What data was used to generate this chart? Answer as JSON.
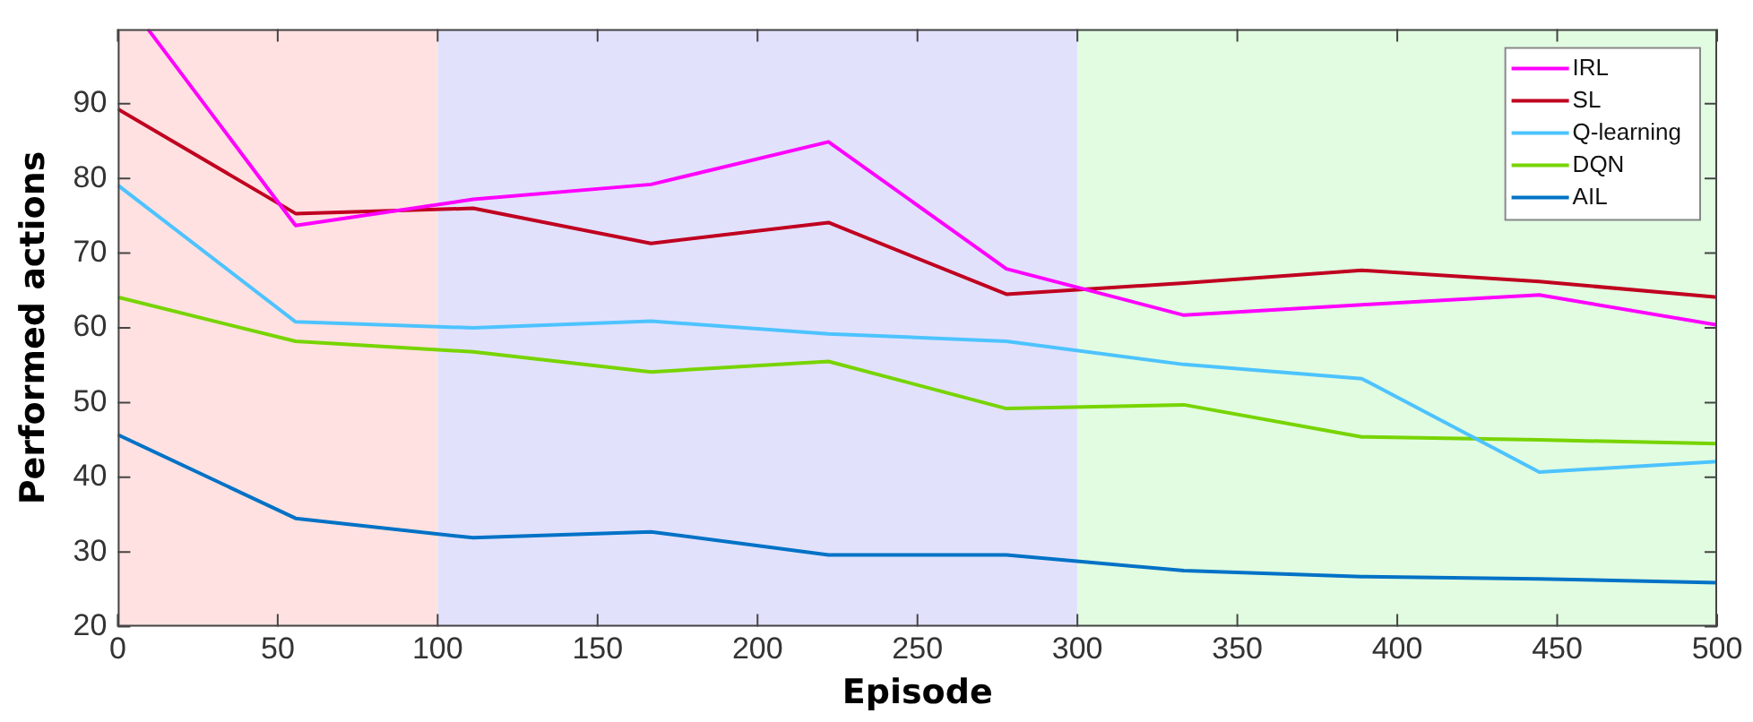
{
  "chart_data": {
    "type": "line",
    "xlabel": "Episode",
    "ylabel": "Performed actions",
    "x": [
      0,
      55.6,
      111.1,
      166.7,
      222.2,
      277.8,
      333.3,
      388.9,
      444.4,
      500
    ],
    "series": [
      {
        "name": "IRL",
        "color": "#ff00ff",
        "x": [
          9.4,
          55.6,
          111.1,
          166.7,
          222.2,
          277.8,
          333.3,
          388.9,
          444.4,
          500
        ],
        "values": [
          100,
          73.7,
          77.2,
          79.2,
          84.9,
          67.9,
          61.7,
          63.1,
          64.4,
          60.4
        ]
      },
      {
        "name": "SL",
        "color": "#c00020",
        "values": [
          89.3,
          75.3,
          76.0,
          71.3,
          74.1,
          64.5,
          66.0,
          67.7,
          66.2,
          64.1
        ]
      },
      {
        "name": "Q-learning",
        "color": "#4dc3ff",
        "values": [
          79.1,
          60.8,
          60.0,
          60.9,
          59.2,
          58.2,
          55.1,
          53.2,
          40.7,
          42.1
        ]
      },
      {
        "name": "DQN",
        "color": "#77d400",
        "values": [
          64.1,
          58.2,
          56.8,
          54.1,
          55.5,
          49.2,
          49.7,
          45.4,
          45.0,
          44.5
        ]
      },
      {
        "name": "AIL",
        "color": "#0072c6",
        "values": [
          45.7,
          34.5,
          31.9,
          32.7,
          29.6,
          29.6,
          27.5,
          26.7,
          26.4,
          25.9
        ]
      }
    ],
    "xlim": [
      0,
      500
    ],
    "xticks": [
      0,
      50,
      100,
      150,
      200,
      250,
      300,
      350,
      400,
      450,
      500
    ],
    "ylim": [
      20,
      100
    ],
    "yticks": [
      20,
      30,
      40,
      50,
      60,
      70,
      80,
      90
    ],
    "bands": [
      {
        "axis": "x",
        "from": 0,
        "to": 100,
        "color": "#ffe1e1"
      },
      {
        "axis": "x",
        "from": 100,
        "to": 300,
        "color": "#e1e1fc"
      },
      {
        "axis": "x",
        "from": 300,
        "to": 500,
        "color": "#e1fce1"
      }
    ],
    "grid": false,
    "legend": "top right",
    "marker": "none",
    "line_style": "solid"
  }
}
